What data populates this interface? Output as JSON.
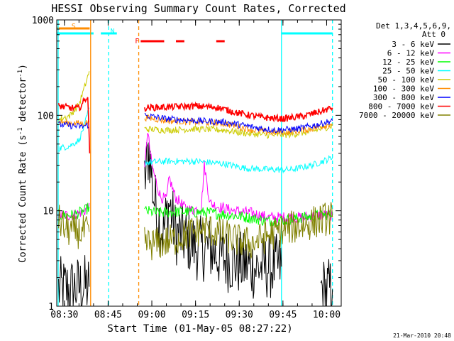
{
  "chart_data": {
    "type": "line",
    "title": "HESSI Observing Summary Count Rates, Corrected",
    "xlabel": "Start Time (01-May-05 08:27:22)",
    "ylabel": "Corrected Count Rate (s⁻¹ detector⁻¹)",
    "ylabel_parts": [
      "Corrected Count Rate (s",
      "-1",
      " detector",
      "-1",
      ")"
    ],
    "y_scale": "log",
    "ylim": [
      1,
      1000
    ],
    "xlim": [
      "08:27:22",
      "10:05:00"
    ],
    "x_ticks": [
      "08:30",
      "08:45",
      "09:00",
      "09:15",
      "09:30",
      "09:45",
      "10:00"
    ],
    "y_ticks": [
      "1",
      "10",
      "100",
      "1000"
    ],
    "detectors_label": "Det 1,3,4,5,6,9,",
    "attenuator_label": "Att 0",
    "footer_date": "21-Mar-2010 20:48",
    "flags": [
      {
        "label": "S",
        "start": "08:27:22",
        "end": "08:38:40",
        "color": "#ff8c00"
      },
      {
        "label": "N",
        "start": "08:42:30",
        "end": "08:48:00",
        "color": "#00ffff"
      },
      {
        "label": "F",
        "start": "08:56:10",
        "end": "09:25:00",
        "color": "#ff0000"
      }
    ],
    "vertical_markers": [
      {
        "time": "08:39:00",
        "style": "solid",
        "color": "#ff8c00"
      },
      {
        "time": "08:45:10",
        "style": "dashed",
        "color": "#00ffff"
      },
      {
        "time": "08:55:30",
        "style": "dashed",
        "color": "#ff8c00"
      },
      {
        "time": "09:44:30",
        "style": "solid",
        "color": "#00ffff"
      },
      {
        "time": "10:02:00",
        "style": "dashed",
        "color": "#00ffff"
      }
    ],
    "series": [
      {
        "name": "3 - 6 keV",
        "color": "#000000",
        "segments": [
          [
            [
              "08:28:00",
              1.5
            ],
            [
              "08:32:00",
              1.5
            ],
            [
              "08:36:00",
              1.6
            ],
            [
              "08:38:30",
              1.6
            ]
          ],
          [
            [
              "08:57:30",
              20
            ],
            [
              "08:59:00",
              45
            ],
            [
              "09:00:30",
              15
            ],
            [
              "09:02:00",
              9
            ],
            [
              "09:04:00",
              6
            ],
            [
              "09:06:00",
              12
            ],
            [
              "09:08:00",
              6
            ],
            [
              "09:12:00",
              5
            ],
            [
              "09:16:00",
              4
            ],
            [
              "09:20:00",
              4
            ],
            [
              "09:24:00",
              3.2
            ],
            [
              "09:30:00",
              2.8
            ],
            [
              "09:36:00",
              2.5
            ],
            [
              "09:40:00",
              2.6
            ],
            [
              "09:44:30",
              2.6
            ]
          ],
          [
            [
              "09:58:00",
              1.5
            ],
            [
              "10:02:00",
              1.5
            ]
          ]
        ]
      },
      {
        "name": "6 - 12 keV",
        "color": "#ff00ff",
        "segments": [
          [
            [
              "08:28:00",
              9
            ],
            [
              "08:33:00",
              9
            ],
            [
              "08:37:00",
              10
            ],
            [
              "08:38:30",
              12
            ]
          ],
          [
            [
              "08:57:30",
              25
            ],
            [
              "08:58:30",
              70
            ],
            [
              "09:00:00",
              30
            ],
            [
              "09:01:30",
              20
            ],
            [
              "09:03:00",
              14
            ],
            [
              "09:05:00",
              13
            ],
            [
              "09:06:00",
              22
            ],
            [
              "09:08:00",
              14
            ],
            [
              "09:11:00",
              11
            ],
            [
              "09:14:00",
              10
            ],
            [
              "09:17:00",
              11
            ],
            [
              "09:18:00",
              30
            ],
            [
              "09:20:00",
              12
            ],
            [
              "09:23:00",
              11
            ],
            [
              "09:28:00",
              10
            ],
            [
              "09:34:00",
              9.5
            ],
            [
              "09:40:00",
              8.5
            ],
            [
              "09:46:00",
              8.5
            ],
            [
              "09:52:00",
              8.5
            ],
            [
              "09:58:00",
              9
            ],
            [
              "10:02:00",
              9
            ]
          ]
        ]
      },
      {
        "name": "12 - 25 keV",
        "color": "#00ff00",
        "segments": [
          [
            [
              "08:28:00",
              9
            ],
            [
              "08:33:00",
              9
            ],
            [
              "08:37:00",
              10
            ],
            [
              "08:38:30",
              11
            ]
          ],
          [
            [
              "08:57:30",
              10
            ],
            [
              "09:02:00",
              9.5
            ],
            [
              "09:10:00",
              9.8
            ],
            [
              "09:20:00",
              9.5
            ],
            [
              "09:30:00",
              8.8
            ],
            [
              "09:40:00",
              7.8
            ],
            [
              "09:46:00",
              8
            ],
            [
              "09:52:00",
              8.5
            ],
            [
              "09:58:00",
              9
            ],
            [
              "10:02:00",
              9.2
            ]
          ]
        ]
      },
      {
        "name": "25 - 50 keV",
        "color": "#00ffff",
        "segments": [
          [
            [
              "08:28:00",
              45
            ],
            [
              "08:32:00",
              48
            ],
            [
              "08:35:00",
              55
            ],
            [
              "08:37:00",
              80
            ],
            [
              "08:38:30",
              120
            ]
          ],
          [
            [
              "08:57:30",
              32
            ],
            [
              "09:05:00",
              33
            ],
            [
              "09:15:00",
              33
            ],
            [
              "09:25:00",
              31
            ],
            [
              "09:32:00",
              28
            ],
            [
              "09:40:00",
              27
            ],
            [
              "09:48:00",
              27
            ],
            [
              "09:55:00",
              30
            ],
            [
              "10:02:00",
              36
            ]
          ]
        ]
      },
      {
        "name": "50 - 100 keV",
        "color": "#cccc00",
        "segments": [
          [
            [
              "08:28:00",
              90
            ],
            [
              "08:32:00",
              100
            ],
            [
              "08:35:00",
              130
            ],
            [
              "08:37:00",
              200
            ],
            [
              "08:38:30",
              290
            ]
          ],
          [
            [
              "08:57:30",
              72
            ],
            [
              "09:05:00",
              70
            ],
            [
              "09:15:00",
              72
            ],
            [
              "09:25:00",
              70
            ],
            [
              "09:32:00",
              65
            ],
            [
              "09:40:00",
              62
            ],
            [
              "09:48:00",
              63
            ],
            [
              "09:55:00",
              68
            ],
            [
              "10:02:00",
              78
            ]
          ]
        ]
      },
      {
        "name": "100 - 300 keV",
        "color": "#ff8c00",
        "segments": [
          [
            [
              "08:28:00",
              85
            ],
            [
              "08:32:00",
              83
            ],
            [
              "08:36:00",
              82
            ],
            [
              "08:38:30",
              85
            ]
          ],
          [
            [
              "08:57:30",
              95
            ],
            [
              "09:05:00",
              88
            ],
            [
              "09:15:00",
              85
            ],
            [
              "09:25:00",
              82
            ],
            [
              "09:35:00",
              70
            ],
            [
              "09:42:00",
              66
            ],
            [
              "09:50:00",
              68
            ],
            [
              "09:57:00",
              75
            ],
            [
              "10:02:00",
              82
            ]
          ]
        ]
      },
      {
        "name": "300 - 800 keV",
        "color": "#0000ff",
        "segments": [
          [
            [
              "08:28:00",
              80
            ],
            [
              "08:32:00",
              78
            ],
            [
              "08:36:00",
              76
            ],
            [
              "08:38:30",
              80
            ]
          ],
          [
            [
              "08:57:30",
              100
            ],
            [
              "09:05:00",
              92
            ],
            [
              "09:15:00",
              88
            ],
            [
              "09:25:00",
              85
            ],
            [
              "09:35:00",
              75
            ],
            [
              "09:42:00",
              70
            ],
            [
              "09:50:00",
              72
            ],
            [
              "09:57:00",
              80
            ],
            [
              "10:02:00",
              88
            ]
          ]
        ]
      },
      {
        "name": "800 - 7000 keV",
        "color": "#ff0000",
        "segments": [
          [
            [
              "08:28:00",
              125
            ],
            [
              "08:32:00",
              120
            ],
            [
              "08:35:00",
              118
            ],
            [
              "08:38:00",
              160
            ],
            [
              "08:38:40",
              40
            ]
          ],
          [
            [
              "08:57:30",
              120
            ],
            [
              "09:05:00",
              122
            ],
            [
              "09:15:00",
              125
            ],
            [
              "09:22:00",
              122
            ],
            [
              "09:30:00",
              105
            ],
            [
              "09:38:00",
              95
            ],
            [
              "09:45:00",
              92
            ],
            [
              "09:52:00",
              98
            ],
            [
              "09:58:00",
              110
            ],
            [
              "10:02:00",
              120
            ]
          ]
        ]
      },
      {
        "name": "7000 - 20000 keV",
        "color": "#808000",
        "segments": [
          [
            [
              "08:28:00",
              8
            ],
            [
              "08:30:00",
              6.5
            ],
            [
              "08:33:00",
              6
            ],
            [
              "08:36:00",
              6
            ],
            [
              "08:38:30",
              6
            ]
          ],
          [
            [
              "08:57:30",
              4.5
            ],
            [
              "09:02:00",
              4.5
            ],
            [
              "09:08:00",
              5
            ],
            [
              "09:14:00",
              6
            ],
            [
              "09:18:00",
              6.5
            ],
            [
              "09:22:00",
              6
            ],
            [
              "09:28:00",
              5
            ],
            [
              "09:34:00",
              4.5
            ],
            [
              "09:40:00",
              5.5
            ],
            [
              "09:46:00",
              6.5
            ],
            [
              "09:52:00",
              7
            ],
            [
              "09:58:00",
              8
            ],
            [
              "10:02:00",
              8.5
            ]
          ]
        ]
      }
    ],
    "legend_position": "right"
  }
}
